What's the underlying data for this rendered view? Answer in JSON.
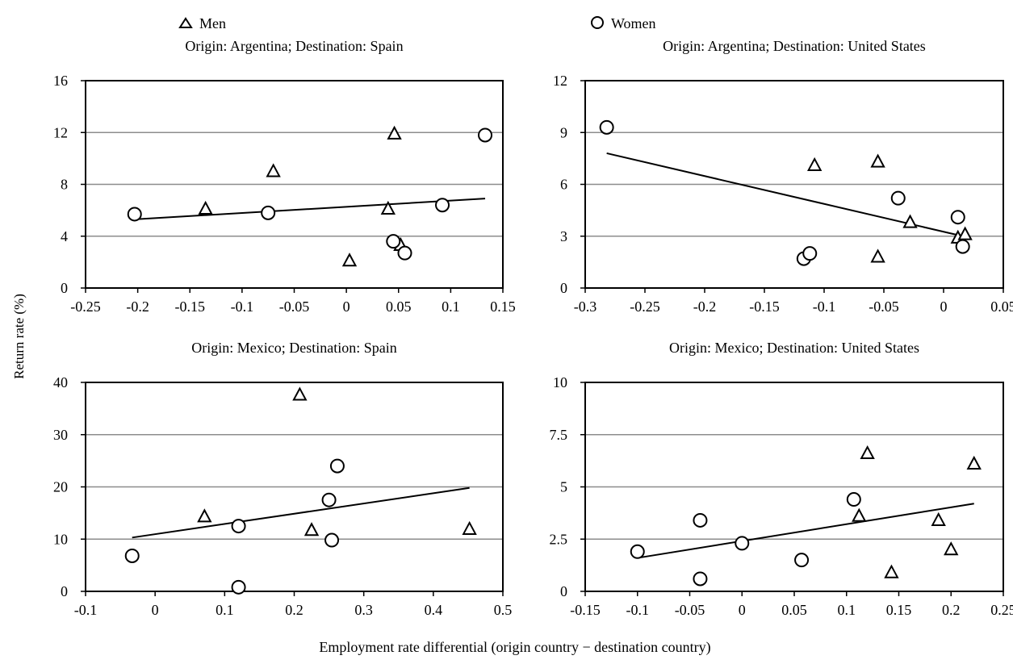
{
  "figure": {
    "y_axis_label": "Return rate (%)",
    "x_axis_label": "Employment rate differential (origin country − destination country)"
  },
  "legend": {
    "position": "top",
    "items": [
      {
        "label": "Men",
        "marker": "triangle"
      },
      {
        "label": "Women",
        "marker": "circle"
      }
    ]
  },
  "colors": {
    "markers": "#000000",
    "gridline": "#8c8c8c",
    "frame": "#000000",
    "trend": "#000000"
  },
  "chart_data": [
    {
      "type": "scatter",
      "title": "Origin: Argentina; Destination: Spain",
      "xlim": [
        -0.25,
        0.15
      ],
      "ylim": [
        0,
        16
      ],
      "xticks": [
        -0.25,
        -0.2,
        -0.15,
        -0.1,
        -0.05,
        0,
        0.05,
        0.1,
        0.15
      ],
      "xtick_labels": [
        "-0.25",
        "-0.2",
        "-0.15",
        "-0.1",
        "-0.05",
        "0",
        "0.05",
        "0.1",
        "0.15"
      ],
      "yticks": [
        0,
        4,
        8,
        12,
        16
      ],
      "ytick_labels": [
        "0",
        "4",
        "8",
        "12",
        "16"
      ],
      "grid": "horizontal",
      "series": [
        {
          "name": "Men",
          "marker": "triangle",
          "points": [
            [
              -0.135,
              6.1
            ],
            [
              -0.07,
              9.0
            ],
            [
              0.003,
              2.1
            ],
            [
              0.04,
              6.1
            ],
            [
              0.046,
              11.9
            ],
            [
              0.052,
              3.3
            ]
          ]
        },
        {
          "name": "Women",
          "marker": "circle",
          "points": [
            [
              -0.203,
              5.7
            ],
            [
              -0.075,
              5.8
            ],
            [
              0.045,
              3.6
            ],
            [
              0.056,
              2.7
            ],
            [
              0.092,
              6.4
            ],
            [
              0.133,
              11.8
            ]
          ]
        }
      ],
      "trendline": {
        "x": [
          -0.203,
          0.133
        ],
        "y": [
          5.3,
          6.9
        ]
      }
    },
    {
      "type": "scatter",
      "title": "Origin: Argentina; Destination: United States",
      "xlim": [
        -0.3,
        0.05
      ],
      "ylim": [
        0,
        12
      ],
      "xticks": [
        -0.3,
        -0.25,
        -0.2,
        -0.15,
        -0.1,
        -0.05,
        0,
        0.05
      ],
      "xtick_labels": [
        "-0.3",
        "-0.25",
        "-0.2",
        "-0.15",
        "-0.1",
        "-0.05",
        "0",
        "0.05"
      ],
      "yticks": [
        0,
        3,
        6,
        9,
        12
      ],
      "ytick_labels": [
        "0",
        "3",
        "6",
        "9",
        "12"
      ],
      "grid": "horizontal",
      "series": [
        {
          "name": "Men",
          "marker": "triangle",
          "points": [
            [
              -0.108,
              7.1
            ],
            [
              -0.055,
              7.3
            ],
            [
              -0.055,
              1.8
            ],
            [
              -0.028,
              3.8
            ],
            [
              0.012,
              2.9
            ],
            [
              0.018,
              3.1
            ]
          ]
        },
        {
          "name": "Women",
          "marker": "circle",
          "points": [
            [
              -0.282,
              9.3
            ],
            [
              -0.117,
              1.7
            ],
            [
              -0.112,
              2.0
            ],
            [
              -0.038,
              5.2
            ],
            [
              0.012,
              4.1
            ],
            [
              0.016,
              2.4
            ]
          ]
        }
      ],
      "trendline": {
        "x": [
          -0.282,
          0.016
        ],
        "y": [
          7.8,
          3.0
        ]
      }
    },
    {
      "type": "scatter",
      "title": "Origin: Mexico; Destination: Spain",
      "xlim": [
        -0.1,
        0.5
      ],
      "ylim": [
        0,
        40
      ],
      "xticks": [
        -0.1,
        0,
        0.1,
        0.2,
        0.3,
        0.4,
        0.5
      ],
      "xtick_labels": [
        "-0.1",
        "0",
        "0.1",
        "0.2",
        "0.3",
        "0.4",
        "0.5"
      ],
      "yticks": [
        0,
        10,
        20,
        30,
        40
      ],
      "ytick_labels": [
        "0",
        "10",
        "20",
        "30",
        "40"
      ],
      "grid": "horizontal",
      "series": [
        {
          "name": "Men",
          "marker": "triangle",
          "points": [
            [
              0.071,
              14.3
            ],
            [
              0.208,
              37.6
            ],
            [
              0.225,
              11.7
            ],
            [
              0.452,
              11.9
            ]
          ]
        },
        {
          "name": "Women",
          "marker": "circle",
          "points": [
            [
              -0.033,
              6.8
            ],
            [
              0.12,
              0.8
            ],
            [
              0.12,
              12.5
            ],
            [
              0.25,
              17.5
            ],
            [
              0.254,
              9.8
            ],
            [
              0.262,
              24.0
            ]
          ]
        }
      ],
      "trendline": {
        "x": [
          -0.033,
          0.452
        ],
        "y": [
          10.3,
          19.8
        ]
      }
    },
    {
      "type": "scatter",
      "title": "Origin: Mexico; Destination: United States",
      "xlim": [
        -0.15,
        0.25
      ],
      "ylim": [
        0,
        10
      ],
      "xticks": [
        -0.15,
        -0.1,
        -0.05,
        0,
        0.05,
        0.1,
        0.15,
        0.2,
        0.25
      ],
      "xtick_labels": [
        "-0.15",
        "-0.1",
        "-0.05",
        "0",
        "0.05",
        "0.1",
        "0.15",
        "0.2",
        "0.25"
      ],
      "yticks": [
        0,
        2.5,
        5,
        7.5,
        10
      ],
      "ytick_labels": [
        "0",
        "2.5",
        "5",
        "7.5",
        "10"
      ],
      "grid": "horizontal",
      "series": [
        {
          "name": "Men",
          "marker": "triangle",
          "points": [
            [
              0.112,
              3.6
            ],
            [
              0.12,
              6.6
            ],
            [
              0.143,
              0.9
            ],
            [
              0.188,
              3.4
            ],
            [
              0.2,
              2.0
            ],
            [
              0.222,
              6.1
            ]
          ]
        },
        {
          "name": "Women",
          "marker": "circle",
          "points": [
            [
              -0.1,
              1.9
            ],
            [
              -0.04,
              0.6
            ],
            [
              -0.04,
              3.4
            ],
            [
              0.0,
              2.3
            ],
            [
              0.057,
              1.5
            ],
            [
              0.107,
              4.4
            ]
          ]
        }
      ],
      "trendline": {
        "x": [
          -0.1,
          0.222
        ],
        "y": [
          1.6,
          4.2
        ]
      }
    }
  ]
}
